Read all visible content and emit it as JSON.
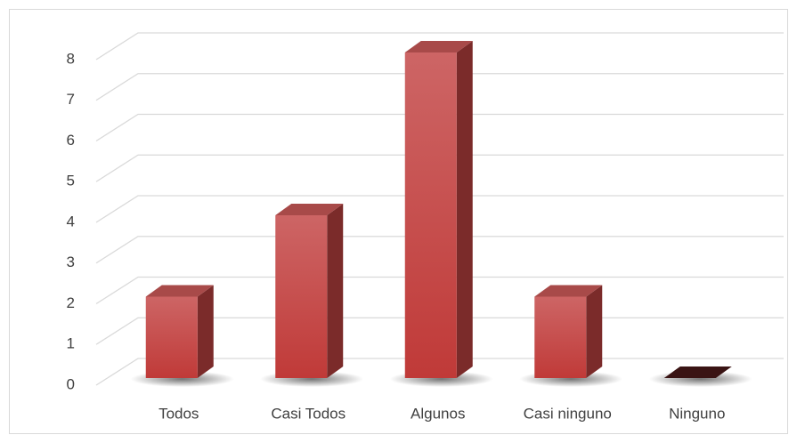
{
  "chart_data": {
    "type": "bar3d",
    "categories": [
      "Todos",
      "Casi Todos",
      "Algunos",
      "Casi ninguno",
      "Ninguno"
    ],
    "values": [
      2,
      4,
      8,
      2,
      0
    ],
    "color": "#c0403f",
    "ylim": [
      0,
      8
    ],
    "yticks": [
      0,
      1,
      2,
      3,
      4,
      5,
      6,
      7,
      8
    ],
    "grid": true
  }
}
